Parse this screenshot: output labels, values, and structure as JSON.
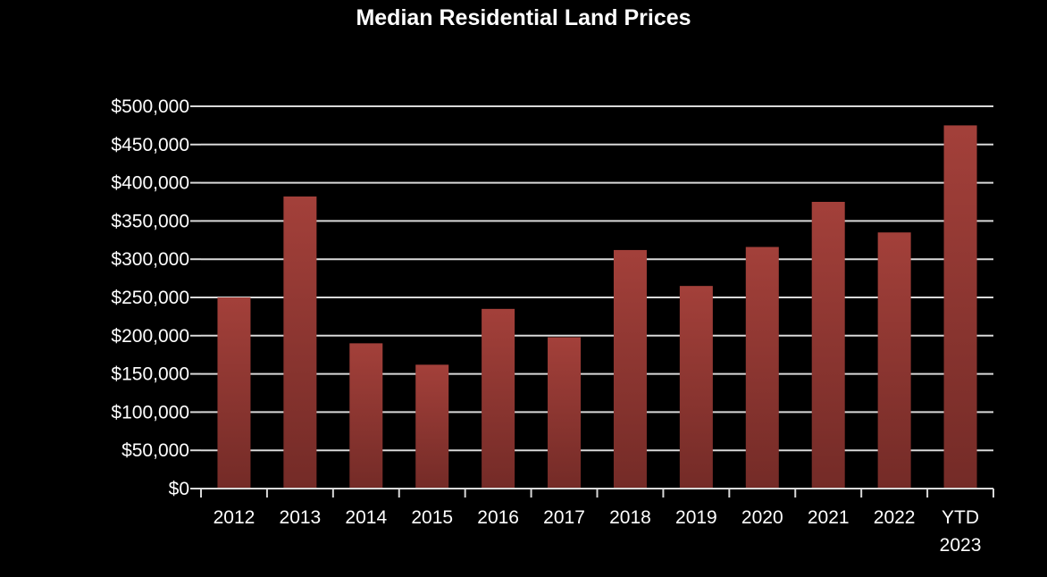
{
  "chart_data": {
    "type": "bar",
    "title": "Median Residential Land Prices",
    "xlabel": "",
    "ylabel": "",
    "ylim": [
      0,
      500000
    ],
    "y_tick_labels": [
      "$0",
      "$50,000",
      "$100,000",
      "$150,000",
      "$200,000",
      "$250,000",
      "$300,000",
      "$350,000",
      "$400,000",
      "$450,000",
      "$500,000"
    ],
    "categories": [
      "2012",
      "2013",
      "2014",
      "2015",
      "2016",
      "2017",
      "2018",
      "2019",
      "2020",
      "2021",
      "2022",
      "YTD 2023"
    ],
    "values": [
      250000,
      382000,
      190000,
      162000,
      235000,
      198000,
      312000,
      265000,
      316000,
      375000,
      335000,
      475000
    ],
    "grid": true,
    "legend": "none",
    "colors": {
      "background": "#000000",
      "bar_top": "#a3403a",
      "bar_bottom": "#742b27",
      "grid": "#d9d9d9",
      "text": "#ffffff"
    }
  }
}
